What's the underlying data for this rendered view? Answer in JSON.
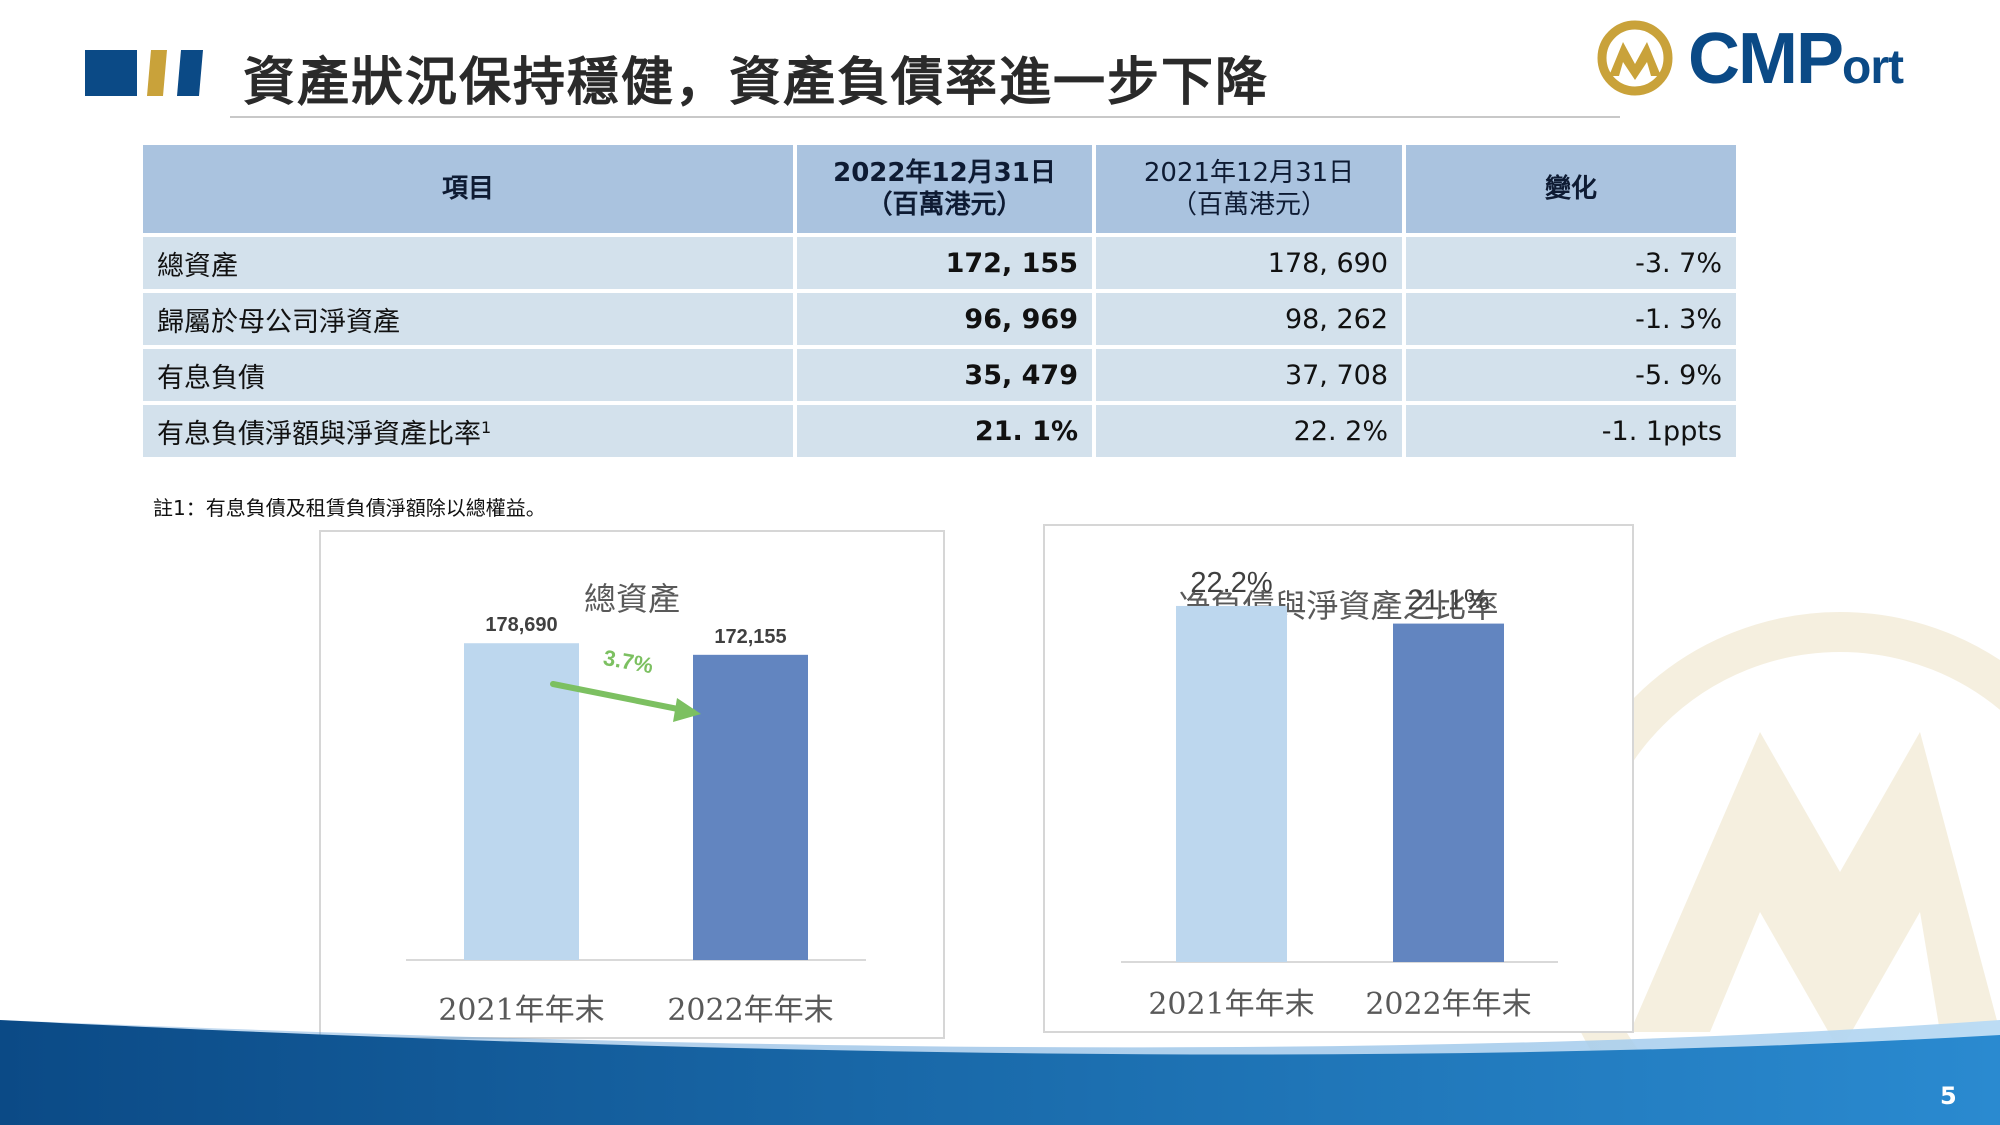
{
  "slide": {
    "title": "資產狀況保持穩健，資產負債率進一步下降",
    "page_number": "5",
    "logo_text_main": "CMP",
    "logo_text_suffix": "ort",
    "footnote": "註1：有息負債及租賃負債淨額除以總權益。"
  },
  "table": {
    "headers": [
      {
        "line1": "項目",
        "line2": ""
      },
      {
        "line1": "2022年12月31日",
        "line2": "（百萬港元）"
      },
      {
        "line1": "2021年12月31日",
        "line2": "（百萬港元）"
      },
      {
        "line1": "變化",
        "line2": ""
      }
    ],
    "rows": [
      {
        "item": "總資產",
        "y2022": "172, 155",
        "y2021": "178, 690",
        "change": "-3. 7%"
      },
      {
        "item": "歸屬於母公司淨資產",
        "y2022": "96, 969",
        "y2021": "98, 262",
        "change": "-1. 3%"
      },
      {
        "item": "有息負債",
        "y2022": "35, 479",
        "y2021": "37, 708",
        "change": "-5. 9%"
      },
      {
        "item": "有息負債淨額與淨資產比率",
        "item_sup": "1",
        "y2022": "21. 1%",
        "y2021": "22. 2%",
        "change": "-1. 1ppts"
      }
    ]
  },
  "chart_data": [
    {
      "type": "bar",
      "title": "總資產",
      "categories": [
        "2021年年末",
        "2022年年末"
      ],
      "values": [
        178690,
        172155
      ],
      "value_labels": [
        "178,690",
        "172,155"
      ],
      "annotation": "3.7%",
      "colors": [
        "#bdd7ee",
        "#6285c0"
      ],
      "annotation_color": "#7cc061",
      "ylim": [
        0,
        220000
      ]
    },
    {
      "type": "bar",
      "title": "净負債與淨資產之比率",
      "categories": [
        "2021年年末",
        "2022年年末"
      ],
      "values": [
        22.2,
        21.1
      ],
      "value_labels": [
        "22.2%",
        "21.1%"
      ],
      "colors": [
        "#bdd7ee",
        "#6285c0"
      ],
      "ylim": [
        0,
        26
      ]
    }
  ],
  "colors": {
    "brand_navy": "#0b4a86",
    "brand_gold": "#c9a23a",
    "table_header": "#aac3df",
    "table_row": "#d3e1ec"
  }
}
